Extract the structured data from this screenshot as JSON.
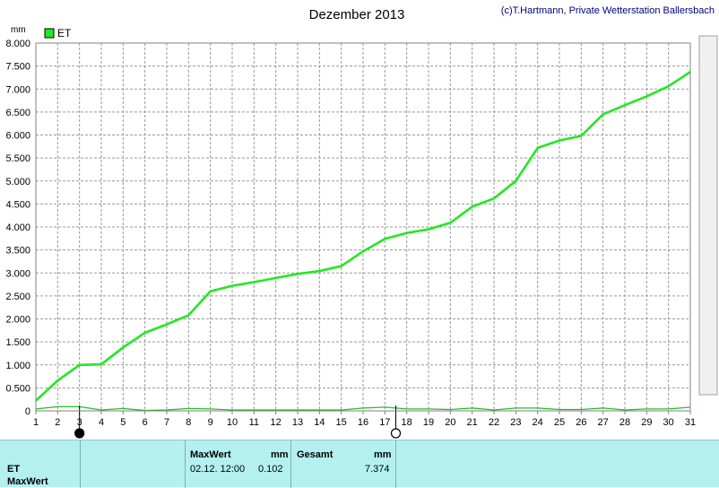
{
  "chart_data": {
    "type": "line",
    "title": "Dezember 2013",
    "copyright": "(c)T.Hartmann, Private Wetterstation Ballersbach",
    "unit": "mm",
    "x": [
      1,
      2,
      3,
      4,
      5,
      6,
      7,
      8,
      9,
      10,
      11,
      12,
      13,
      14,
      15,
      16,
      17,
      18,
      19,
      20,
      21,
      22,
      23,
      24,
      25,
      26,
      27,
      28,
      29,
      30,
      31
    ],
    "ylim": [
      0,
      8.0
    ],
    "yticks": [
      "0",
      "0.500",
      "1.000",
      "1.500",
      "2.000",
      "2.500",
      "3.000",
      "3.500",
      "4.000",
      "4.500",
      "5.000",
      "5.500",
      "6.000",
      "6.500",
      "7.000",
      "7.500",
      "8.000"
    ],
    "grid": true,
    "legend_position": "top-left",
    "series": [
      {
        "name": "ET",
        "color": "#22e822",
        "values": [
          0.22,
          0.66,
          1.0,
          1.01,
          1.38,
          1.7,
          1.88,
          2.08,
          2.6,
          2.72,
          2.8,
          2.89,
          2.98,
          3.04,
          3.15,
          3.47,
          3.74,
          3.87,
          3.95,
          4.09,
          4.44,
          4.62,
          5.0,
          5.72,
          5.88,
          5.98,
          6.45,
          6.65,
          6.84,
          7.06,
          7.374
        ]
      },
      {
        "color": "#22c022",
        "values": [
          0.04,
          0.09,
          0.09,
          0.02,
          0.05,
          0.01,
          0.02,
          0.05,
          0.04,
          0.02,
          0.02,
          0.02,
          0.02,
          0.02,
          0.02,
          0.06,
          0.08,
          0.04,
          0.04,
          0.03,
          0.06,
          0.02,
          0.06,
          0.06,
          0.03,
          0.03,
          0.06,
          0.02,
          0.04,
          0.04,
          0.08
        ]
      }
    ],
    "markers": [
      {
        "x": 3,
        "type": "filled-circle"
      },
      {
        "x": 17.5,
        "type": "open-circle"
      }
    ]
  },
  "footer": {
    "row1_label": "ET",
    "row2_label": "MaxWert",
    "maxwert_header": "MaxWert",
    "maxwert_unit": "mm",
    "maxwert_time": "02.12.  12:00",
    "maxwert_value": "0.102",
    "gesamt_header": "Gesamt",
    "gesamt_unit": "mm",
    "gesamt_value": "7.374"
  }
}
